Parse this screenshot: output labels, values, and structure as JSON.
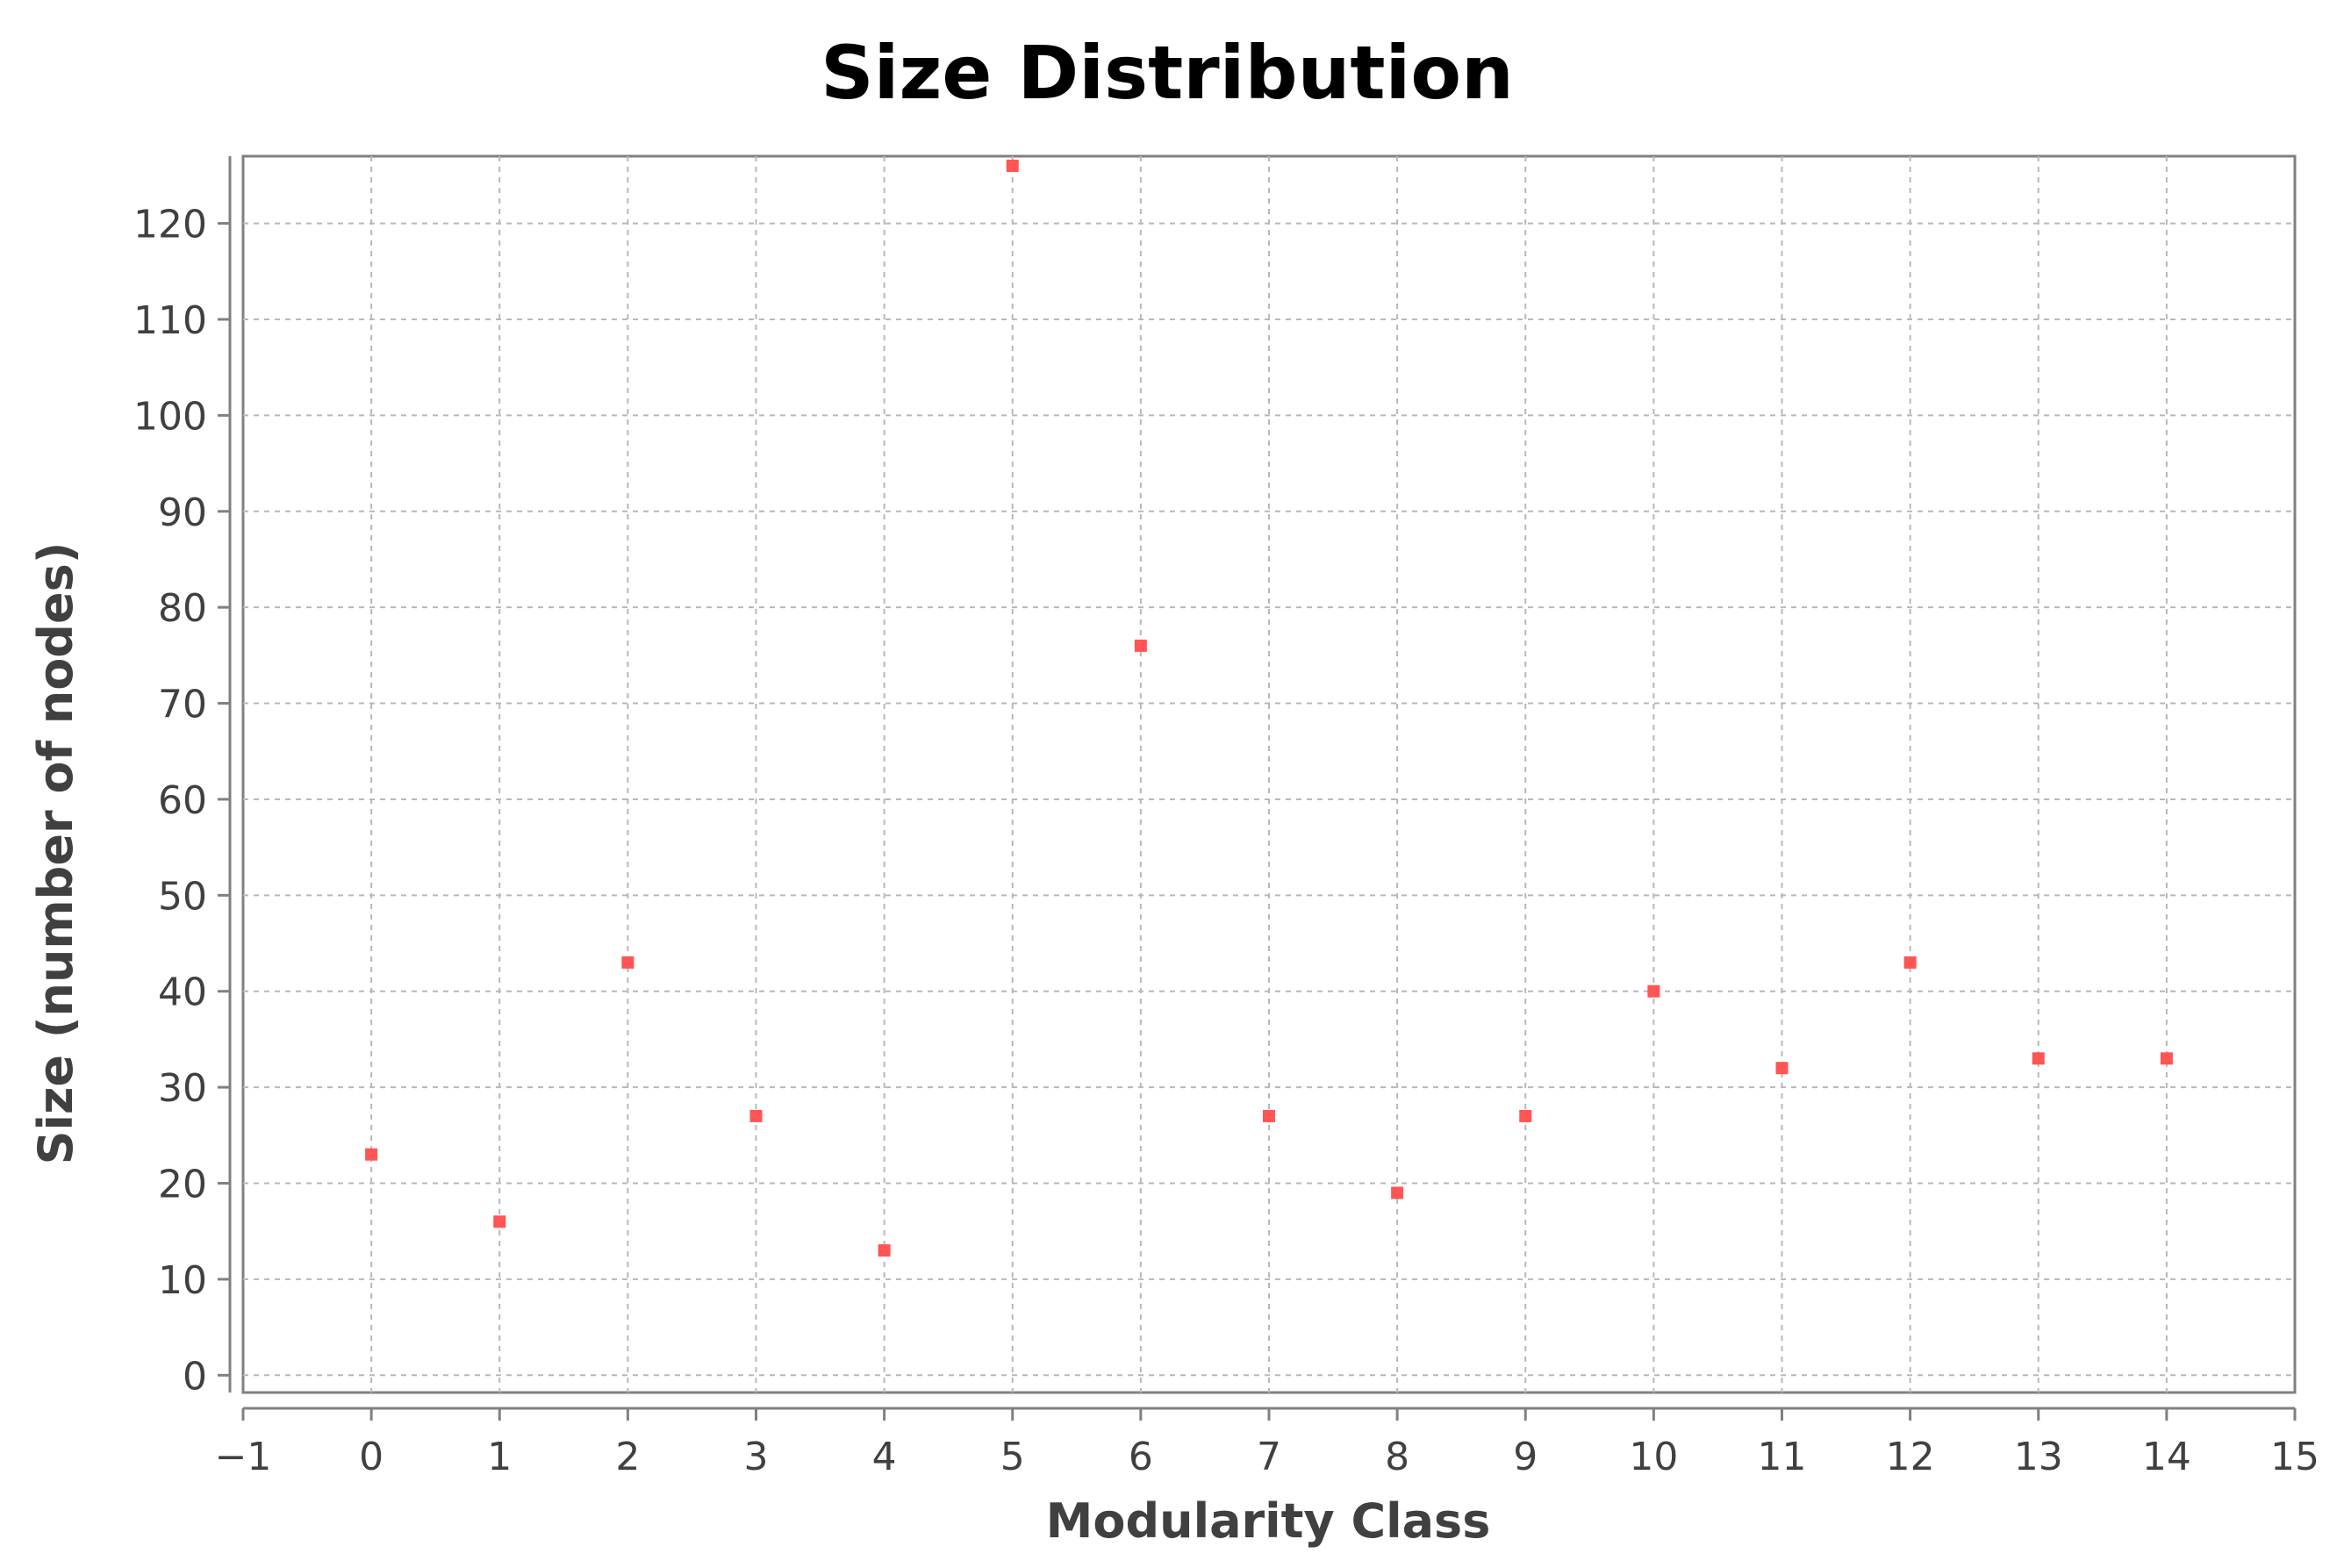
{
  "chart_data": {
    "type": "scatter",
    "title": "Size Distribution",
    "xlabel": "Modularity Class",
    "ylabel": "Size (number of nodes)",
    "xlim": [
      -1,
      15
    ],
    "ylim": [
      -1.8,
      127
    ],
    "x_ticks": [
      -1,
      0,
      1,
      2,
      3,
      4,
      5,
      6,
      7,
      8,
      9,
      10,
      11,
      12,
      13,
      14,
      15
    ],
    "x_tick_labels": [
      "−1",
      "0",
      "1",
      "2",
      "3",
      "4",
      "5",
      "6",
      "7",
      "8",
      "9",
      "10",
      "11",
      "12",
      "13",
      "14",
      "15"
    ],
    "y_ticks": [
      0,
      10,
      20,
      30,
      40,
      50,
      60,
      70,
      80,
      90,
      100,
      110,
      120
    ],
    "y_tick_labels": [
      "0",
      "10",
      "20",
      "30",
      "40",
      "50",
      "60",
      "70",
      "80",
      "90",
      "100",
      "110",
      "120"
    ],
    "grid": true,
    "marker_color": "#ff5555",
    "series": [
      {
        "x": [
          0,
          1,
          2,
          3,
          4,
          5,
          6,
          7,
          8,
          9,
          10,
          11,
          12,
          13,
          14
        ],
        "y": [
          23,
          16,
          43,
          27,
          13,
          126,
          76,
          27,
          19,
          27,
          40,
          32,
          43,
          33,
          33
        ]
      }
    ]
  }
}
